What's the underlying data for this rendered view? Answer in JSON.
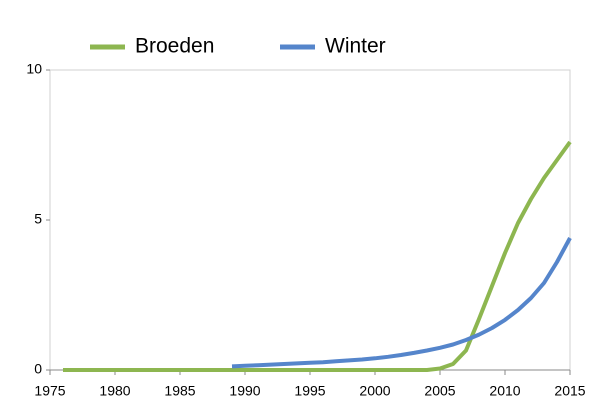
{
  "chart_data": {
    "type": "line",
    "x": [
      1976,
      1977,
      1978,
      1979,
      1980,
      1981,
      1982,
      1983,
      1984,
      1985,
      1986,
      1987,
      1988,
      1989,
      1990,
      1991,
      1992,
      1993,
      1994,
      1995,
      1996,
      1997,
      1998,
      1999,
      2000,
      2001,
      2002,
      2003,
      2004,
      2005,
      2006,
      2007,
      2008,
      2009,
      2010,
      2011,
      2012,
      2013,
      2014,
      2015
    ],
    "series": [
      {
        "name": "Broeden",
        "color": "#8db650",
        "values": [
          0,
          0,
          0,
          0,
          0,
          0,
          0,
          0,
          0,
          0,
          0,
          0,
          0,
          0,
          0,
          0,
          0,
          0,
          0,
          0,
          0,
          0,
          0,
          0,
          0,
          0,
          0,
          0,
          0,
          0.05,
          0.2,
          0.65,
          1.7,
          2.8,
          3.9,
          4.9,
          5.7,
          6.4,
          7.0,
          7.6
        ]
      },
      {
        "name": "Winter",
        "color": "#5585cb",
        "values": [
          null,
          null,
          null,
          null,
          null,
          null,
          null,
          null,
          null,
          null,
          null,
          null,
          null,
          0.12,
          0.14,
          0.16,
          0.18,
          0.2,
          0.22,
          0.24,
          0.26,
          0.29,
          0.32,
          0.35,
          0.39,
          0.44,
          0.5,
          0.57,
          0.65,
          0.74,
          0.85,
          1.0,
          1.18,
          1.4,
          1.67,
          2.0,
          2.4,
          2.9,
          3.6,
          4.4
        ]
      }
    ],
    "xlim": [
      1975,
      2015
    ],
    "xticks": [
      1975,
      1980,
      1985,
      1990,
      1995,
      2000,
      2005,
      2010,
      2015
    ],
    "ylim": [
      0,
      10
    ],
    "yticks": [
      0,
      5,
      10
    ],
    "legend": "top"
  }
}
